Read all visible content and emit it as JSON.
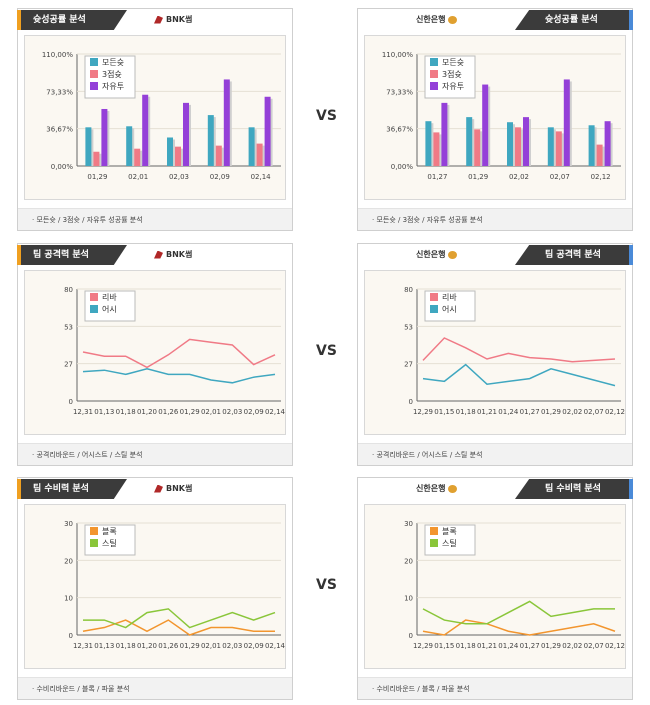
{
  "vs_label": "VS",
  "left_team": "BNK썸",
  "right_team": "신한은행",
  "colors": {
    "teal": "#3fa7c0",
    "pink": "#f07a86",
    "purple": "#9440d8",
    "orange": "#f2952e",
    "green": "#8ac63a",
    "tab_dark": "#3b3b3b",
    "tab_left_accent": "#f0a020",
    "tab_right_accent": "#4a8ad8"
  },
  "sections": {
    "shooting": {
      "title": "슛성공률 분석",
      "footer": "· 모든슛 / 3점슛 / 자유투 성공률 분석"
    },
    "offense": {
      "title": "팀 공격력 분석",
      "footer": "· 공격리바운드 / 어시스트 / 스틸 분석"
    },
    "defense": {
      "title": "팀 수비력 분석",
      "footer": "· 수비리바운드 / 블록 / 파울 분석"
    }
  },
  "chart_data": [
    {
      "type": "bar",
      "panel": "shooting-left",
      "categories": [
        "01,29",
        "02,01",
        "02,03",
        "02,09",
        "02,14"
      ],
      "series": [
        {
          "name": "모든슛",
          "values": [
            38,
            39,
            28,
            50,
            38
          ]
        },
        {
          "name": "3점슛",
          "values": [
            14,
            17,
            19,
            20,
            22
          ]
        },
        {
          "name": "자유투",
          "values": [
            56,
            70,
            62,
            85,
            68
          ]
        }
      ],
      "ylim": [
        0,
        110
      ],
      "yticks": [
        "0,00%",
        "36,67%",
        "73,33%",
        "110,00%"
      ],
      "legend": "top-left"
    },
    {
      "type": "bar",
      "panel": "shooting-right",
      "categories": [
        "01,27",
        "01,29",
        "02,02",
        "02,07",
        "02,12"
      ],
      "series": [
        {
          "name": "모든슛",
          "values": [
            44,
            48,
            43,
            38,
            40
          ]
        },
        {
          "name": "3점슛",
          "values": [
            33,
            36,
            38,
            34,
            21
          ]
        },
        {
          "name": "자유투",
          "values": [
            62,
            80,
            48,
            85,
            44
          ]
        }
      ],
      "ylim": [
        0,
        110
      ],
      "yticks": [
        "0,00%",
        "36,67%",
        "73,33%",
        "110,00%"
      ],
      "legend": "top-left"
    },
    {
      "type": "line",
      "panel": "offense-left",
      "categories": [
        "12,31",
        "01,13",
        "01,18",
        "01,20",
        "01,26",
        "01,29",
        "02,01",
        "02,03",
        "02,09",
        "02,14"
      ],
      "series": [
        {
          "name": "리바",
          "values": [
            35,
            32,
            32,
            24,
            33,
            44,
            42,
            40,
            26,
            33
          ]
        },
        {
          "name": "어시",
          "values": [
            21,
            22,
            19,
            23,
            19,
            19,
            15,
            13,
            17,
            19
          ]
        }
      ],
      "ylim": [
        0,
        80
      ],
      "yticks": [
        "0",
        "27",
        "53",
        "80"
      ],
      "legend": "top-left"
    },
    {
      "type": "line",
      "panel": "offense-right",
      "categories": [
        "12,29",
        "01,15",
        "01,18",
        "01,21",
        "01,24",
        "01,27",
        "01,29",
        "02,02",
        "02,07",
        "02,12"
      ],
      "series": [
        {
          "name": "리바",
          "values": [
            29,
            45,
            38,
            30,
            34,
            31,
            30,
            28,
            29,
            30
          ]
        },
        {
          "name": "어시",
          "values": [
            16,
            14,
            26,
            12,
            14,
            16,
            23,
            19,
            15,
            11
          ]
        }
      ],
      "ylim": [
        0,
        80
      ],
      "yticks": [
        "0",
        "27",
        "53",
        "80"
      ],
      "legend": "top-left"
    },
    {
      "type": "line",
      "panel": "defense-left",
      "categories": [
        "12,31",
        "01,13",
        "01,18",
        "01,20",
        "01,26",
        "01,29",
        "02,01",
        "02,03",
        "02,09",
        "02,14"
      ],
      "series": [
        {
          "name": "블록",
          "values": [
            1,
            2,
            4,
            1,
            4,
            0,
            2,
            2,
            1,
            1
          ]
        },
        {
          "name": "스틸",
          "values": [
            4,
            4,
            2,
            6,
            7,
            2,
            4,
            6,
            4,
            6
          ]
        }
      ],
      "ylim": [
        0,
        30
      ],
      "yticks": [
        "0",
        "10",
        "20",
        "30"
      ],
      "legend": "top-left"
    },
    {
      "type": "line",
      "panel": "defense-right",
      "categories": [
        "12,29",
        "01,15",
        "01,18",
        "01,21",
        "01,24",
        "01,27",
        "01,29",
        "02,02",
        "02,07",
        "02,12"
      ],
      "series": [
        {
          "name": "블록",
          "values": [
            1,
            0,
            4,
            3,
            1,
            0,
            1,
            2,
            3,
            1
          ]
        },
        {
          "name": "스틸",
          "values": [
            7,
            4,
            3,
            3,
            6,
            9,
            5,
            6,
            7,
            7
          ]
        }
      ],
      "ylim": [
        0,
        30
      ],
      "yticks": [
        "0",
        "10",
        "20",
        "30"
      ],
      "legend": "top-left"
    }
  ]
}
